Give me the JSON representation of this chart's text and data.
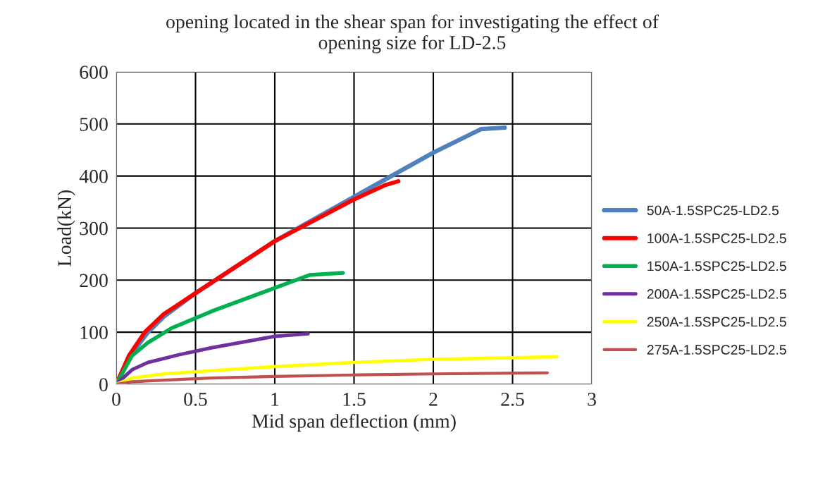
{
  "chart_data": {
    "type": "line",
    "title": "opening located in the shear span for investigating the effect of\nopening size for LD-2.5",
    "xlabel": "Mid span deflection (mm)",
    "ylabel": "Load(kN)",
    "xlim": [
      0,
      3
    ],
    "xticks": [
      0,
      0.5,
      1,
      1.5,
      2,
      2.5,
      3
    ],
    "ylim": [
      0,
      600
    ],
    "yticks": [
      0,
      100,
      200,
      300,
      400,
      500,
      600
    ],
    "grid": true,
    "legend": "right",
    "marker": "none",
    "line_style": "solid",
    "series": [
      {
        "name": "50A-1.5SPC25-LD2.5",
        "color": "#4f81bd",
        "x": [
          0,
          0.1,
          0.2,
          0.3,
          0.5,
          1,
          1.5,
          2,
          2.3,
          2.45
        ],
        "values": [
          0,
          60,
          100,
          130,
          175,
          275,
          360,
          445,
          490,
          493
        ]
      },
      {
        "name": "100A-1.5SPC25-LD2.5",
        "color": "#ff0000",
        "x": [
          0,
          0.08,
          0.18,
          0.3,
          0.5,
          1,
          1.5,
          1.7,
          1.78
        ],
        "values": [
          0,
          55,
          100,
          135,
          175,
          275,
          355,
          383,
          390
        ]
      },
      {
        "name": "150A-1.5SPC25-LD2.5",
        "color": "#00b050",
        "x": [
          0,
          0.1,
          0.2,
          0.35,
          0.6,
          1,
          1.22,
          1.43
        ],
        "values": [
          0,
          55,
          80,
          108,
          140,
          185,
          210,
          214
        ]
      },
      {
        "name": "200A-1.5SPC25-LD2.5",
        "color": "#7030a0",
        "x": [
          0,
          0.1,
          0.2,
          0.4,
          0.6,
          1,
          1.21
        ],
        "values": [
          0,
          28,
          42,
          57,
          70,
          92,
          97
        ]
      },
      {
        "name": "250A-1.5SPC25-LD2.5",
        "color": "#ffff00",
        "x": [
          0,
          0.1,
          0.3,
          0.6,
          1,
          1.5,
          2,
          2.5,
          2.78
        ],
        "values": [
          0,
          12,
          20,
          26,
          34,
          42,
          48,
          51,
          53
        ]
      },
      {
        "name": "275A-1.5SPC25-LD2.5",
        "color": "#c0504d",
        "x": [
          0,
          0.1,
          0.3,
          0.6,
          1,
          1.5,
          2,
          2.72
        ],
        "values": [
          0,
          5,
          8,
          12,
          15,
          18,
          20,
          22
        ]
      }
    ]
  }
}
